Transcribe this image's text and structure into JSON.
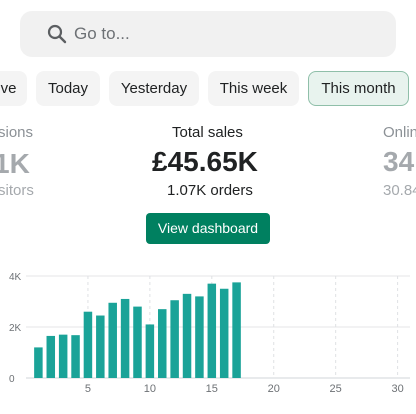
{
  "search": {
    "placeholder": "Go to...",
    "icon": "search-icon"
  },
  "date_filters": [
    {
      "label": "ve",
      "active": false
    },
    {
      "label": "Today",
      "active": false
    },
    {
      "label": "Yesterday",
      "active": false
    },
    {
      "label": "This week",
      "active": false
    },
    {
      "label": "This month",
      "active": true
    }
  ],
  "metrics": {
    "left": {
      "label": "sions",
      "value": "1K",
      "sub": "sitors"
    },
    "center": {
      "label": "Total sales",
      "value": "£45.65K",
      "sub": "1.07K orders"
    },
    "right": {
      "label": "Onlin",
      "value": "34",
      "sub": "30.84"
    }
  },
  "view_dashboard_label": "View dashboard",
  "colors": {
    "accent": "#008060",
    "bar": "#1aa398",
    "active_chip_bg": "#e8f3ee",
    "active_chip_border": "#8fbfa9"
  },
  "chart_data": {
    "type": "bar",
    "x": [
      1,
      2,
      3,
      4,
      5,
      6,
      7,
      8,
      9,
      10,
      11,
      12,
      13,
      14,
      15,
      16,
      17
    ],
    "values": [
      1200,
      1650,
      1700,
      1680,
      2600,
      2450,
      2950,
      3100,
      2800,
      2100,
      2700,
      3050,
      3300,
      3200,
      3700,
      3500,
      3750
    ],
    "xlim": [
      0,
      31
    ],
    "ylim": [
      0,
      4000
    ],
    "y_ticks": [
      "0",
      "2K",
      "4K"
    ],
    "x_ticks": [
      "5",
      "10",
      "15",
      "20",
      "25",
      "30"
    ],
    "grid": true
  }
}
